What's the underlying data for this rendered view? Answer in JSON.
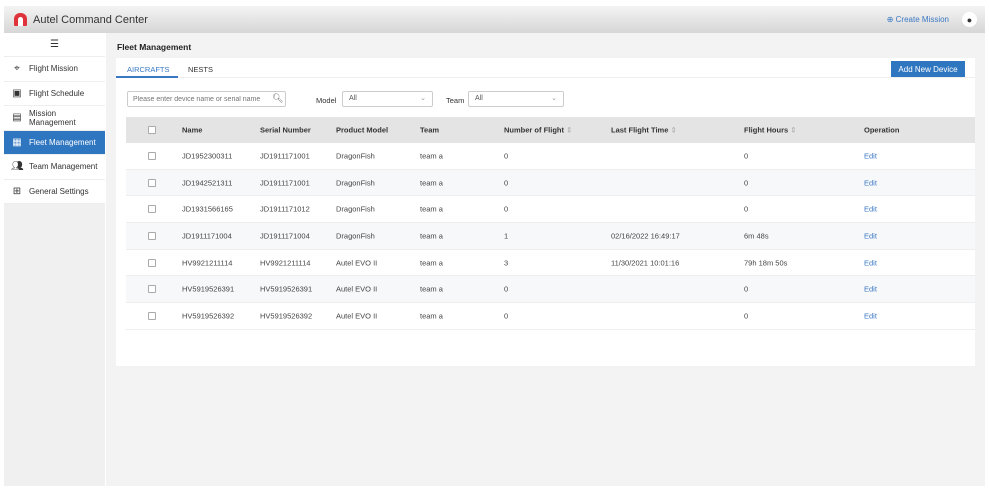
{
  "header": {
    "app_title": "Autel Command Center",
    "create_mission": "Create Mission"
  },
  "sidebar": {
    "items": [
      {
        "label": "Flight Mission",
        "icon": "map-pin-icon"
      },
      {
        "label": "Flight Schedule",
        "icon": "schedule-icon"
      },
      {
        "label": "Mission Management",
        "icon": "clipboard-icon"
      },
      {
        "label": "Fleet Management",
        "icon": "fleet-icon",
        "active": true
      },
      {
        "label": "Team Management",
        "icon": "team-icon"
      },
      {
        "label": "General Settings",
        "icon": "settings-grid-icon"
      }
    ]
  },
  "page": {
    "title": "Fleet Management",
    "tabs": [
      "AIRCRAFTS",
      "NESTS"
    ],
    "add_button": "Add New Device",
    "search_placeholder": "Please enter device name or serial name",
    "model_label": "Model",
    "model_value": "All",
    "team_label": "Team",
    "team_value": "All"
  },
  "table": {
    "columns": [
      "Name",
      "Serial Number",
      "Product Model",
      "Team",
      "Number of Flight",
      "Last Flight Time",
      "Flight Hours",
      "Operation"
    ],
    "rows": [
      [
        "JD1952300311",
        "JD1911171001",
        "DragonFish",
        "team a",
        "0",
        "",
        "0",
        "Edit"
      ],
      [
        "JD1942521311",
        "JD1911171001",
        "DragonFish",
        "team a",
        "0",
        "",
        "0",
        "Edit"
      ],
      [
        "JD1931566165",
        "JD1911171012",
        "DragonFish",
        "team a",
        "0",
        "",
        "0",
        "Edit"
      ],
      [
        "JD1911171004",
        "JD1911171004",
        "DragonFish",
        "team a",
        "1",
        "02/16/2022 16:49:17",
        "6m 48s",
        "Edit"
      ],
      [
        "HV9921211114",
        "HV9921211114",
        "Autel EVO II",
        "team a",
        "3",
        "11/30/2021 10:01:16",
        "79h 18m 50s",
        "Edit"
      ],
      [
        "HV5919526391",
        "HV5919526391",
        "Autel EVO II",
        "team a",
        "0",
        "",
        "0",
        "Edit"
      ],
      [
        "HV5919526392",
        "HV5919526392",
        "Autel EVO II",
        "team a",
        "0",
        "",
        "0",
        "Edit"
      ]
    ]
  },
  "colors": {
    "accent": "#2f76c0",
    "logo": "#e0323a"
  }
}
